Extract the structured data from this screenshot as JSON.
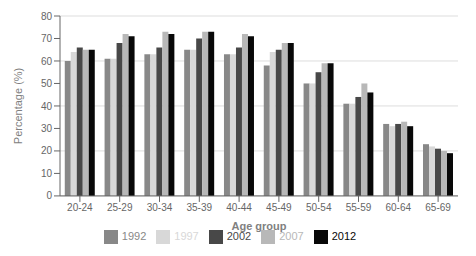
{
  "chart_data": {
    "type": "bar",
    "xlabel": "Age group",
    "ylabel": "Percentage (%)",
    "categories": [
      "20-24",
      "25-29",
      "30-34",
      "35-39",
      "40-44",
      "45-49",
      "50-54",
      "55-59",
      "60-64",
      "65-69"
    ],
    "series": [
      {
        "name": "1992",
        "color": "#888888",
        "values": [
          60,
          61,
          63,
          65,
          63,
          58,
          50,
          41,
          32,
          23
        ]
      },
      {
        "name": "1997",
        "color": "#d8d8d8",
        "values": [
          64,
          61,
          63,
          65,
          63,
          64,
          50,
          41,
          31,
          22
        ]
      },
      {
        "name": "2002",
        "color": "#484848",
        "values": [
          66,
          68,
          66,
          70,
          66,
          65,
          55,
          44,
          32,
          21
        ]
      },
      {
        "name": "2007",
        "color": "#b8b8b8",
        "values": [
          65,
          72,
          73,
          73,
          72,
          68,
          59,
          50,
          33,
          20
        ]
      },
      {
        "name": "2012",
        "color": "#080808",
        "values": [
          65,
          71,
          72,
          73,
          71,
          68,
          59,
          46,
          31,
          19
        ]
      }
    ],
    "ylim": [
      0,
      80
    ],
    "yticks": [
      0,
      10,
      20,
      30,
      40,
      50,
      60,
      70,
      80
    ],
    "grid": true,
    "legend": "bottom"
  }
}
